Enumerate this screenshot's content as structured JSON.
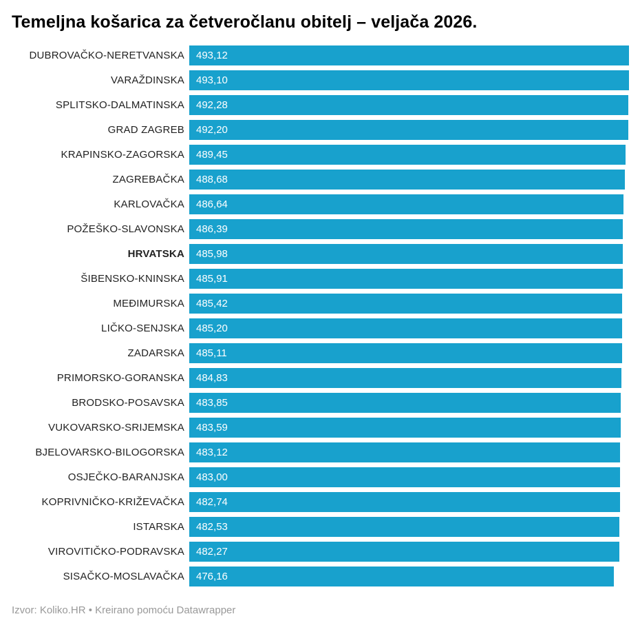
{
  "title": "Temeljna košarica za četveročlanu obitelj – veljača 2026.",
  "footer": {
    "source_label": "Izvor: Koliko.HR • Kreirano pomoću Datawrapper"
  },
  "colors": {
    "bar": "#18a1cd",
    "label_text": "#222222",
    "value_text": "#ffffff",
    "title_text": "#000000",
    "footer_text": "#999999",
    "background": "#ffffff"
  },
  "chart_data": {
    "type": "bar",
    "orientation": "horizontal",
    "title": "Temeljna košarica za četveročlanu obitelj – veljača 2026.",
    "xlabel": "",
    "ylabel": "",
    "xlim": [
      0,
      493.12
    ],
    "grid": false,
    "legend": false,
    "bold_category": "HRVATSKA",
    "categories": [
      "DUBROVAČKO-NERETVANSKA",
      "VARAŽDINSKA",
      "SPLITSKO-DALMATINSKA",
      "GRAD ZAGREB",
      "KRAPINSKO-ZAGORSKA",
      "ZAGREBAČKA",
      "KARLOVAČKA",
      "POŽEŠKO-SLAVONSKA",
      "HRVATSKA",
      "ŠIBENSKO-KNINSKA",
      "MEĐIMURSKA",
      "LIČKO-SENJSKA",
      "ZADARSKA",
      "PRIMORSKO-GORANSKA",
      "BRODSKO-POSAVSKA",
      "VUKOVARSKO-SRIJEMSKA",
      "BJELOVARSKO-BILOGORSKA",
      "OSJEČKO-BARANJSKA",
      "KOPRIVNIČKO-KRIŽEVAČKA",
      "ISTARSKA",
      "VIROVITIČKO-PODRAVSKA",
      "SISAČKO-MOSLAVAČKA"
    ],
    "values": [
      493.12,
      493.1,
      492.28,
      492.2,
      489.45,
      488.68,
      486.64,
      486.39,
      485.98,
      485.91,
      485.42,
      485.2,
      485.11,
      484.83,
      483.85,
      483.59,
      483.12,
      483.0,
      482.74,
      482.53,
      482.27,
      476.16
    ],
    "values_display": [
      "493,12",
      "493,10",
      "492,28",
      "492,20",
      "489,45",
      "488,68",
      "486,64",
      "486,39",
      "485,98",
      "485,91",
      "485,42",
      "485,20",
      "485,11",
      "484,83",
      "483,85",
      "483,59",
      "483,12",
      "483,00",
      "482,74",
      "482,53",
      "482,27",
      "476,16"
    ]
  }
}
